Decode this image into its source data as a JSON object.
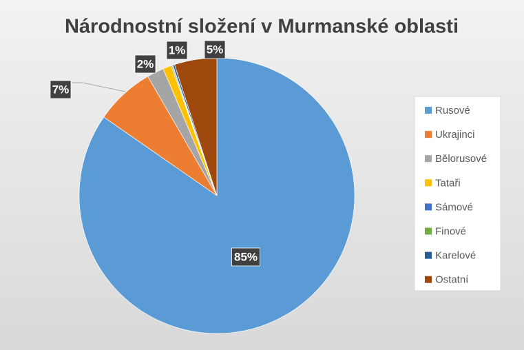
{
  "chart_data": {
    "type": "pie",
    "title": "Národnostní složení v Murmanské oblasti",
    "categories": [
      "Rusové",
      "Ukrajinci",
      "Bělorusové",
      "Tataři",
      "Sámové",
      "Finové",
      "Karelové",
      "Ostatní"
    ],
    "values": [
      85,
      7,
      2,
      1,
      0.1,
      0.1,
      0.2,
      5
    ],
    "value_labels": [
      "85%",
      "7%",
      "2%",
      "1%",
      null,
      null,
      null,
      "5%"
    ],
    "colors": [
      "#5b9bd5",
      "#ed7d31",
      "#a5a5a5",
      "#ffc000",
      "#4472c4",
      "#70ad47",
      "#255e91",
      "#9e480e"
    ],
    "legend": "right"
  }
}
